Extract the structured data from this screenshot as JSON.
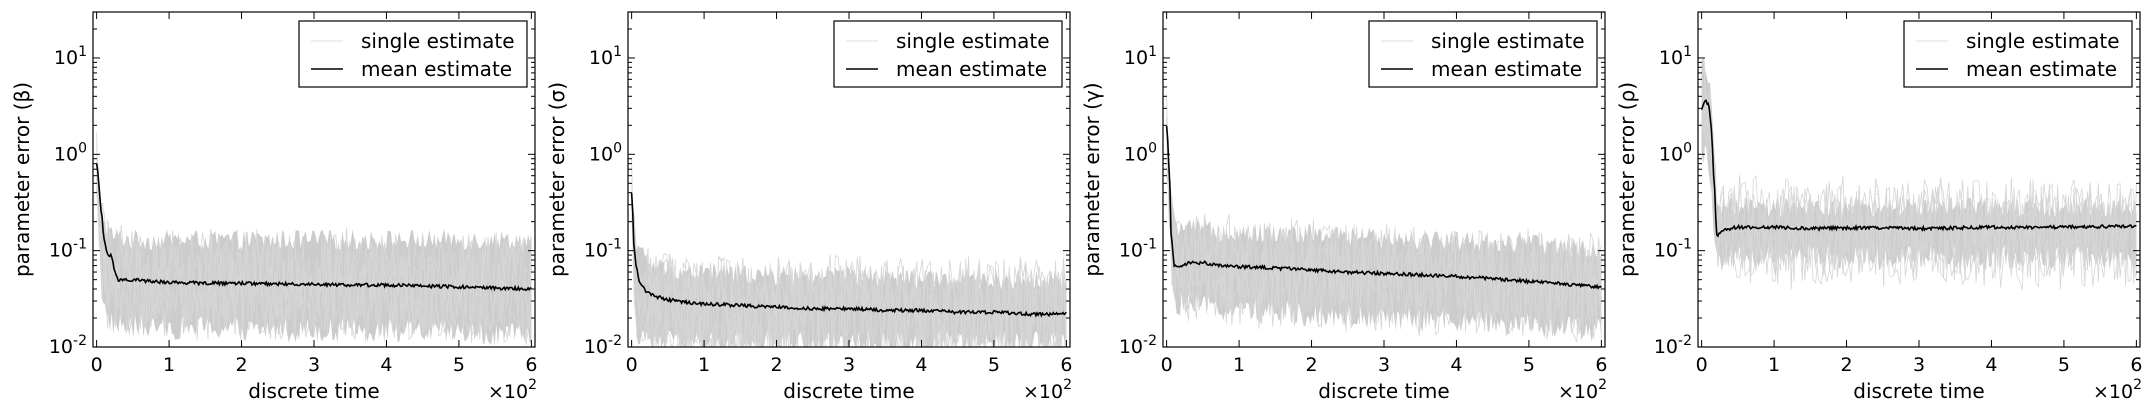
{
  "chart_data": [
    {
      "type": "line",
      "xlabel": "discrete time",
      "ylabel": "parameter error (β)",
      "x_multiplier": "×10",
      "x_multiplier_exp": "2",
      "yscale": "log",
      "ylim": [
        0.01,
        30
      ],
      "xlim": [
        -0.05,
        6.05
      ],
      "x_ticks": [
        "0",
        "1",
        "2",
        "3",
        "4",
        "5",
        "6"
      ],
      "y_ticks": [
        {
          "base": "10",
          "exp": "-2",
          "value": 0.01
        },
        {
          "base": "10",
          "exp": "-1",
          "value": 0.1
        },
        {
          "base": "10",
          "exp": "0",
          "value": 1
        },
        {
          "base": "10",
          "exp": "1",
          "value": 10
        }
      ],
      "legend": {
        "placement": "top-right",
        "entries": [
          "single estimate",
          "mean estimate"
        ]
      },
      "series": [
        {
          "name": "mean estimate",
          "color": "#000000",
          "x": [
            0,
            0.05,
            0.1,
            0.15,
            0.2,
            0.25,
            0.3,
            0.4,
            0.5,
            0.75,
            1,
            1.5,
            2,
            2.5,
            3,
            3.5,
            4,
            4.5,
            5,
            5.5,
            6
          ],
          "y": [
            0.8,
            0.3,
            0.13,
            0.09,
            0.09,
            0.06,
            0.05,
            0.05,
            0.05,
            0.048,
            0.047,
            0.046,
            0.046,
            0.045,
            0.045,
            0.044,
            0.044,
            0.043,
            0.042,
            0.041,
            0.04
          ]
        },
        {
          "name": "single estimate",
          "color": "#cccccc",
          "band_upper": [
            0.8,
            0.35,
            0.2,
            0.16,
            0.15,
            0.14,
            0.14,
            0.13,
            0.13,
            0.13,
            0.13,
            0.13,
            0.13,
            0.13,
            0.13,
            0.13,
            0.13,
            0.13,
            0.13,
            0.13,
            0.13
          ],
          "band_lower": [
            0.6,
            0.05,
            0.025,
            0.02,
            0.018,
            0.017,
            0.017,
            0.016,
            0.016,
            0.016,
            0.016,
            0.016,
            0.015,
            0.015,
            0.015,
            0.015,
            0.015,
            0.014,
            0.014,
            0.013,
            0.013
          ]
        }
      ]
    },
    {
      "type": "line",
      "xlabel": "discrete time",
      "ylabel": "parameter error (σ)",
      "x_multiplier": "×10",
      "x_multiplier_exp": "2",
      "yscale": "log",
      "ylim": [
        0.01,
        30
      ],
      "xlim": [
        -0.05,
        6.05
      ],
      "x_ticks": [
        "0",
        "1",
        "2",
        "3",
        "4",
        "5",
        "6"
      ],
      "y_ticks": [
        {
          "base": "10",
          "exp": "-2",
          "value": 0.01
        },
        {
          "base": "10",
          "exp": "-1",
          "value": 0.1
        },
        {
          "base": "10",
          "exp": "0",
          "value": 1
        },
        {
          "base": "10",
          "exp": "1",
          "value": 10
        }
      ],
      "legend": {
        "placement": "top-right",
        "entries": [
          "single estimate",
          "mean estimate"
        ]
      },
      "series": [
        {
          "name": "mean estimate",
          "color": "#000000",
          "x": [
            0,
            0.03,
            0.06,
            0.1,
            0.15,
            0.2,
            0.3,
            0.5,
            0.75,
            1,
            1.5,
            2,
            2.5,
            3,
            3.5,
            4,
            4.5,
            5,
            5.5,
            6
          ],
          "y": [
            0.4,
            0.12,
            0.07,
            0.05,
            0.042,
            0.038,
            0.034,
            0.031,
            0.029,
            0.028,
            0.027,
            0.026,
            0.025,
            0.025,
            0.024,
            0.024,
            0.023,
            0.023,
            0.022,
            0.022
          ]
        },
        {
          "name": "single estimate",
          "color": "#cccccc",
          "band_upper": [
            0.5,
            0.25,
            0.14,
            0.1,
            0.09,
            0.08,
            0.07,
            0.065,
            0.06,
            0.06,
            0.058,
            0.055,
            0.055,
            0.055,
            0.052,
            0.05,
            0.05,
            0.05,
            0.05,
            0.05
          ],
          "band_lower": [
            0.3,
            0.03,
            0.018,
            0.013,
            0.012,
            0.011,
            0.011,
            0.011,
            0.011,
            0.011,
            0.011,
            0.011,
            0.011,
            0.011,
            0.011,
            0.011,
            0.011,
            0.011,
            0.011,
            0.011
          ]
        }
      ]
    },
    {
      "type": "line",
      "xlabel": "discrete time",
      "ylabel": "parameter error (γ)",
      "x_multiplier": "×10",
      "x_multiplier_exp": "2",
      "yscale": "log",
      "ylim": [
        0.01,
        30
      ],
      "xlim": [
        -0.05,
        6.05
      ],
      "x_ticks": [
        "0",
        "1",
        "2",
        "3",
        "4",
        "5",
        "6"
      ],
      "y_ticks": [
        {
          "base": "10",
          "exp": "-2",
          "value": 0.01
        },
        {
          "base": "10",
          "exp": "-1",
          "value": 0.1
        },
        {
          "base": "10",
          "exp": "0",
          "value": 1
        },
        {
          "base": "10",
          "exp": "1",
          "value": 10
        }
      ],
      "legend": {
        "placement": "top-right",
        "entries": [
          "single estimate",
          "mean estimate"
        ]
      },
      "series": [
        {
          "name": "mean estimate",
          "color": "#000000",
          "x": [
            0,
            0.03,
            0.06,
            0.1,
            0.15,
            0.2,
            0.3,
            0.5,
            0.75,
            1,
            1.5,
            2,
            2.5,
            3,
            3.5,
            4,
            4.5,
            5,
            5.5,
            6
          ],
          "y": [
            2.0,
            0.8,
            0.15,
            0.07,
            0.068,
            0.07,
            0.075,
            0.075,
            0.07,
            0.068,
            0.066,
            0.063,
            0.06,
            0.058,
            0.056,
            0.054,
            0.051,
            0.048,
            0.045,
            0.042
          ]
        },
        {
          "name": "single estimate",
          "color": "#cccccc",
          "band_upper": [
            2.2,
            1.0,
            0.35,
            0.2,
            0.18,
            0.17,
            0.17,
            0.17,
            0.16,
            0.16,
            0.15,
            0.15,
            0.14,
            0.14,
            0.13,
            0.13,
            0.12,
            0.12,
            0.11,
            0.1
          ],
          "band_lower": [
            1.5,
            0.3,
            0.05,
            0.03,
            0.028,
            0.028,
            0.027,
            0.026,
            0.025,
            0.024,
            0.023,
            0.022,
            0.021,
            0.02,
            0.019,
            0.018,
            0.018,
            0.017,
            0.016,
            0.015
          ]
        }
      ]
    },
    {
      "type": "line",
      "xlabel": "discrete time",
      "ylabel": "parameter error (ρ)",
      "x_multiplier": "×10",
      "x_multiplier_exp": "2",
      "yscale": "log",
      "ylim": [
        0.01,
        30
      ],
      "xlim": [
        -0.05,
        6.05
      ],
      "x_ticks": [
        "0",
        "1",
        "2",
        "3",
        "4",
        "5",
        "6"
      ],
      "y_ticks": [
        {
          "base": "10",
          "exp": "-2",
          "value": 0.01
        },
        {
          "base": "10",
          "exp": "-1",
          "value": 0.1
        },
        {
          "base": "10",
          "exp": "0",
          "value": 1
        },
        {
          "base": "10",
          "exp": "1",
          "value": 10
        }
      ],
      "legend": {
        "placement": "top-right",
        "entries": [
          "single estimate",
          "mean estimate"
        ]
      },
      "series": [
        {
          "name": "mean estimate",
          "color": "#000000",
          "x": [
            0,
            0.03,
            0.06,
            0.1,
            0.13,
            0.16,
            0.2,
            0.25,
            0.3,
            0.4,
            0.5,
            1,
            1.5,
            2,
            2.5,
            3,
            3.5,
            4,
            4.5,
            5,
            5.5,
            6
          ],
          "y": [
            3.0,
            3.5,
            3.5,
            3.2,
            2.0,
            0.7,
            0.14,
            0.15,
            0.16,
            0.17,
            0.175,
            0.175,
            0.17,
            0.172,
            0.172,
            0.17,
            0.172,
            0.175,
            0.175,
            0.175,
            0.178,
            0.18
          ]
        },
        {
          "name": "single estimate",
          "color": "#cccccc",
          "band_upper": [
            8.0,
            8.0,
            6.0,
            6.0,
            4.0,
            2.0,
            0.3,
            0.3,
            0.3,
            0.28,
            0.28,
            0.28,
            0.28,
            0.28,
            0.28,
            0.28,
            0.28,
            0.28,
            0.28,
            0.28,
            0.28,
            0.28
          ],
          "band_lower": [
            1.0,
            1.0,
            1.0,
            0.8,
            0.5,
            0.2,
            0.07,
            0.08,
            0.08,
            0.085,
            0.085,
            0.085,
            0.085,
            0.085,
            0.085,
            0.085,
            0.085,
            0.085,
            0.085,
            0.085,
            0.085,
            0.085
          ]
        }
      ]
    }
  ]
}
